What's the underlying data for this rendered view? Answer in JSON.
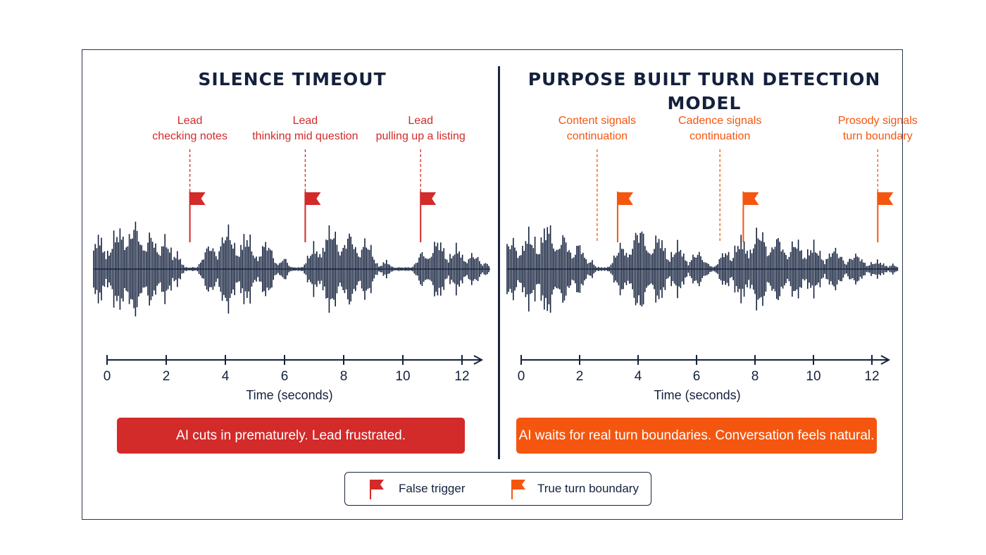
{
  "left_panel": {
    "title": "SILENCE TIMEOUT",
    "annotations": [
      {
        "line1": "Lead",
        "line2": "checking notes",
        "time": 2.8
      },
      {
        "line1": "Lead",
        "line2": "thinking mid question",
        "time": 6.7
      },
      {
        "line1": "Lead",
        "line2": "pulling up a listing",
        "time": 10.6
      }
    ],
    "flag_type": "false",
    "axis": {
      "ticks": [
        "0",
        "2",
        "4",
        "6",
        "8",
        "10",
        "12"
      ],
      "label": "Time (seconds)"
    },
    "banner": "AI cuts in prematurely. Lead frustrated."
  },
  "right_panel": {
    "title": "PURPOSE BUILT TURN DETECTION MODEL",
    "annotations": [
      {
        "line1": "Content signals",
        "line2": "continuation",
        "time": 2.6,
        "flag_time": 3.3
      },
      {
        "line1": "Cadence signals",
        "line2": "continuation",
        "time": 6.8,
        "flag_time": 7.6
      },
      {
        "line1": "Prosody signals",
        "line2": "turn boundary",
        "time": 12.2,
        "flag_time": 12.2
      }
    ],
    "flag_type": "true",
    "axis": {
      "ticks": [
        "0",
        "2",
        "4",
        "6",
        "8",
        "10",
        "12"
      ],
      "label": "Time (seconds)"
    },
    "banner": "AI waits for real turn boundaries. Conversation feels natural."
  },
  "legend": {
    "false_trigger": "False trigger",
    "true_boundary": "True turn boundary"
  },
  "colors": {
    "navy": "#14213d",
    "false_red": "#d32a2a",
    "true_orange": "#f5560f"
  }
}
